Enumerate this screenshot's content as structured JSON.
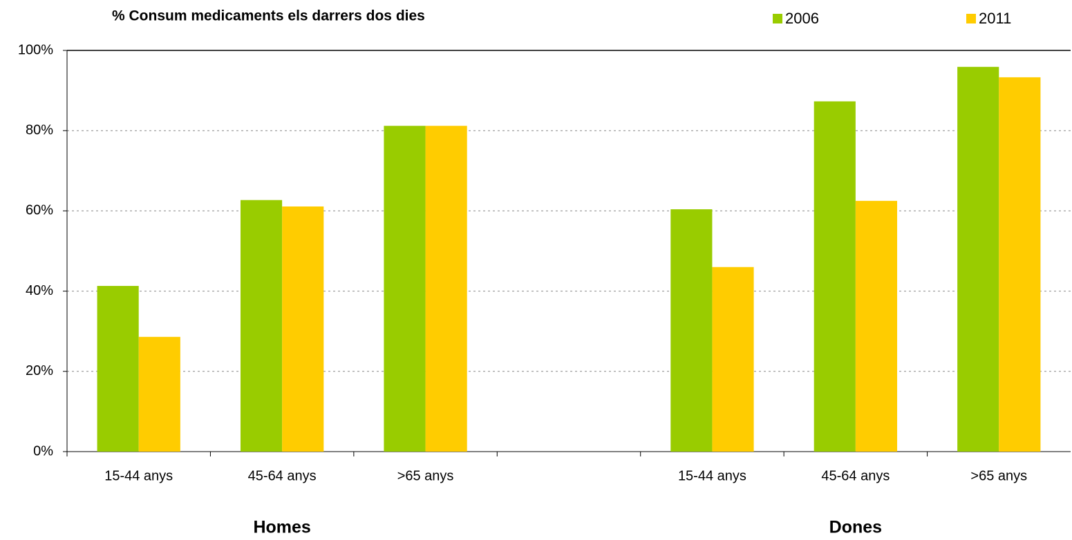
{
  "chart_data": {
    "type": "bar",
    "title": "% Consum medicaments els darrers dos dies",
    "categories": [
      "15-44 anys",
      "45-64 anys",
      ">65 anys",
      null,
      "15-44 anys",
      "45-64 anys",
      ">65 anys"
    ],
    "group_labels": [
      "Homes",
      "Dones"
    ],
    "series": [
      {
        "name": "2006",
        "color": "#99cc00",
        "values": [
          41.3,
          62.7,
          81.2,
          null,
          60.4,
          87.3,
          95.9
        ]
      },
      {
        "name": "2011",
        "color": "#ffcc00",
        "values": [
          28.6,
          61.1,
          81.2,
          null,
          46.0,
          62.5,
          93.3
        ]
      }
    ],
    "ylim": [
      0,
      100
    ],
    "yticks": [
      {
        "value": 0,
        "label": "0%"
      },
      {
        "value": 20,
        "label": "20%"
      },
      {
        "value": 40,
        "label": "40%"
      },
      {
        "value": 60,
        "label": "60%"
      },
      {
        "value": 80,
        "label": "80%"
      },
      {
        "value": 100,
        "label": "100%"
      }
    ],
    "grid": true,
    "legend": "top-right"
  }
}
